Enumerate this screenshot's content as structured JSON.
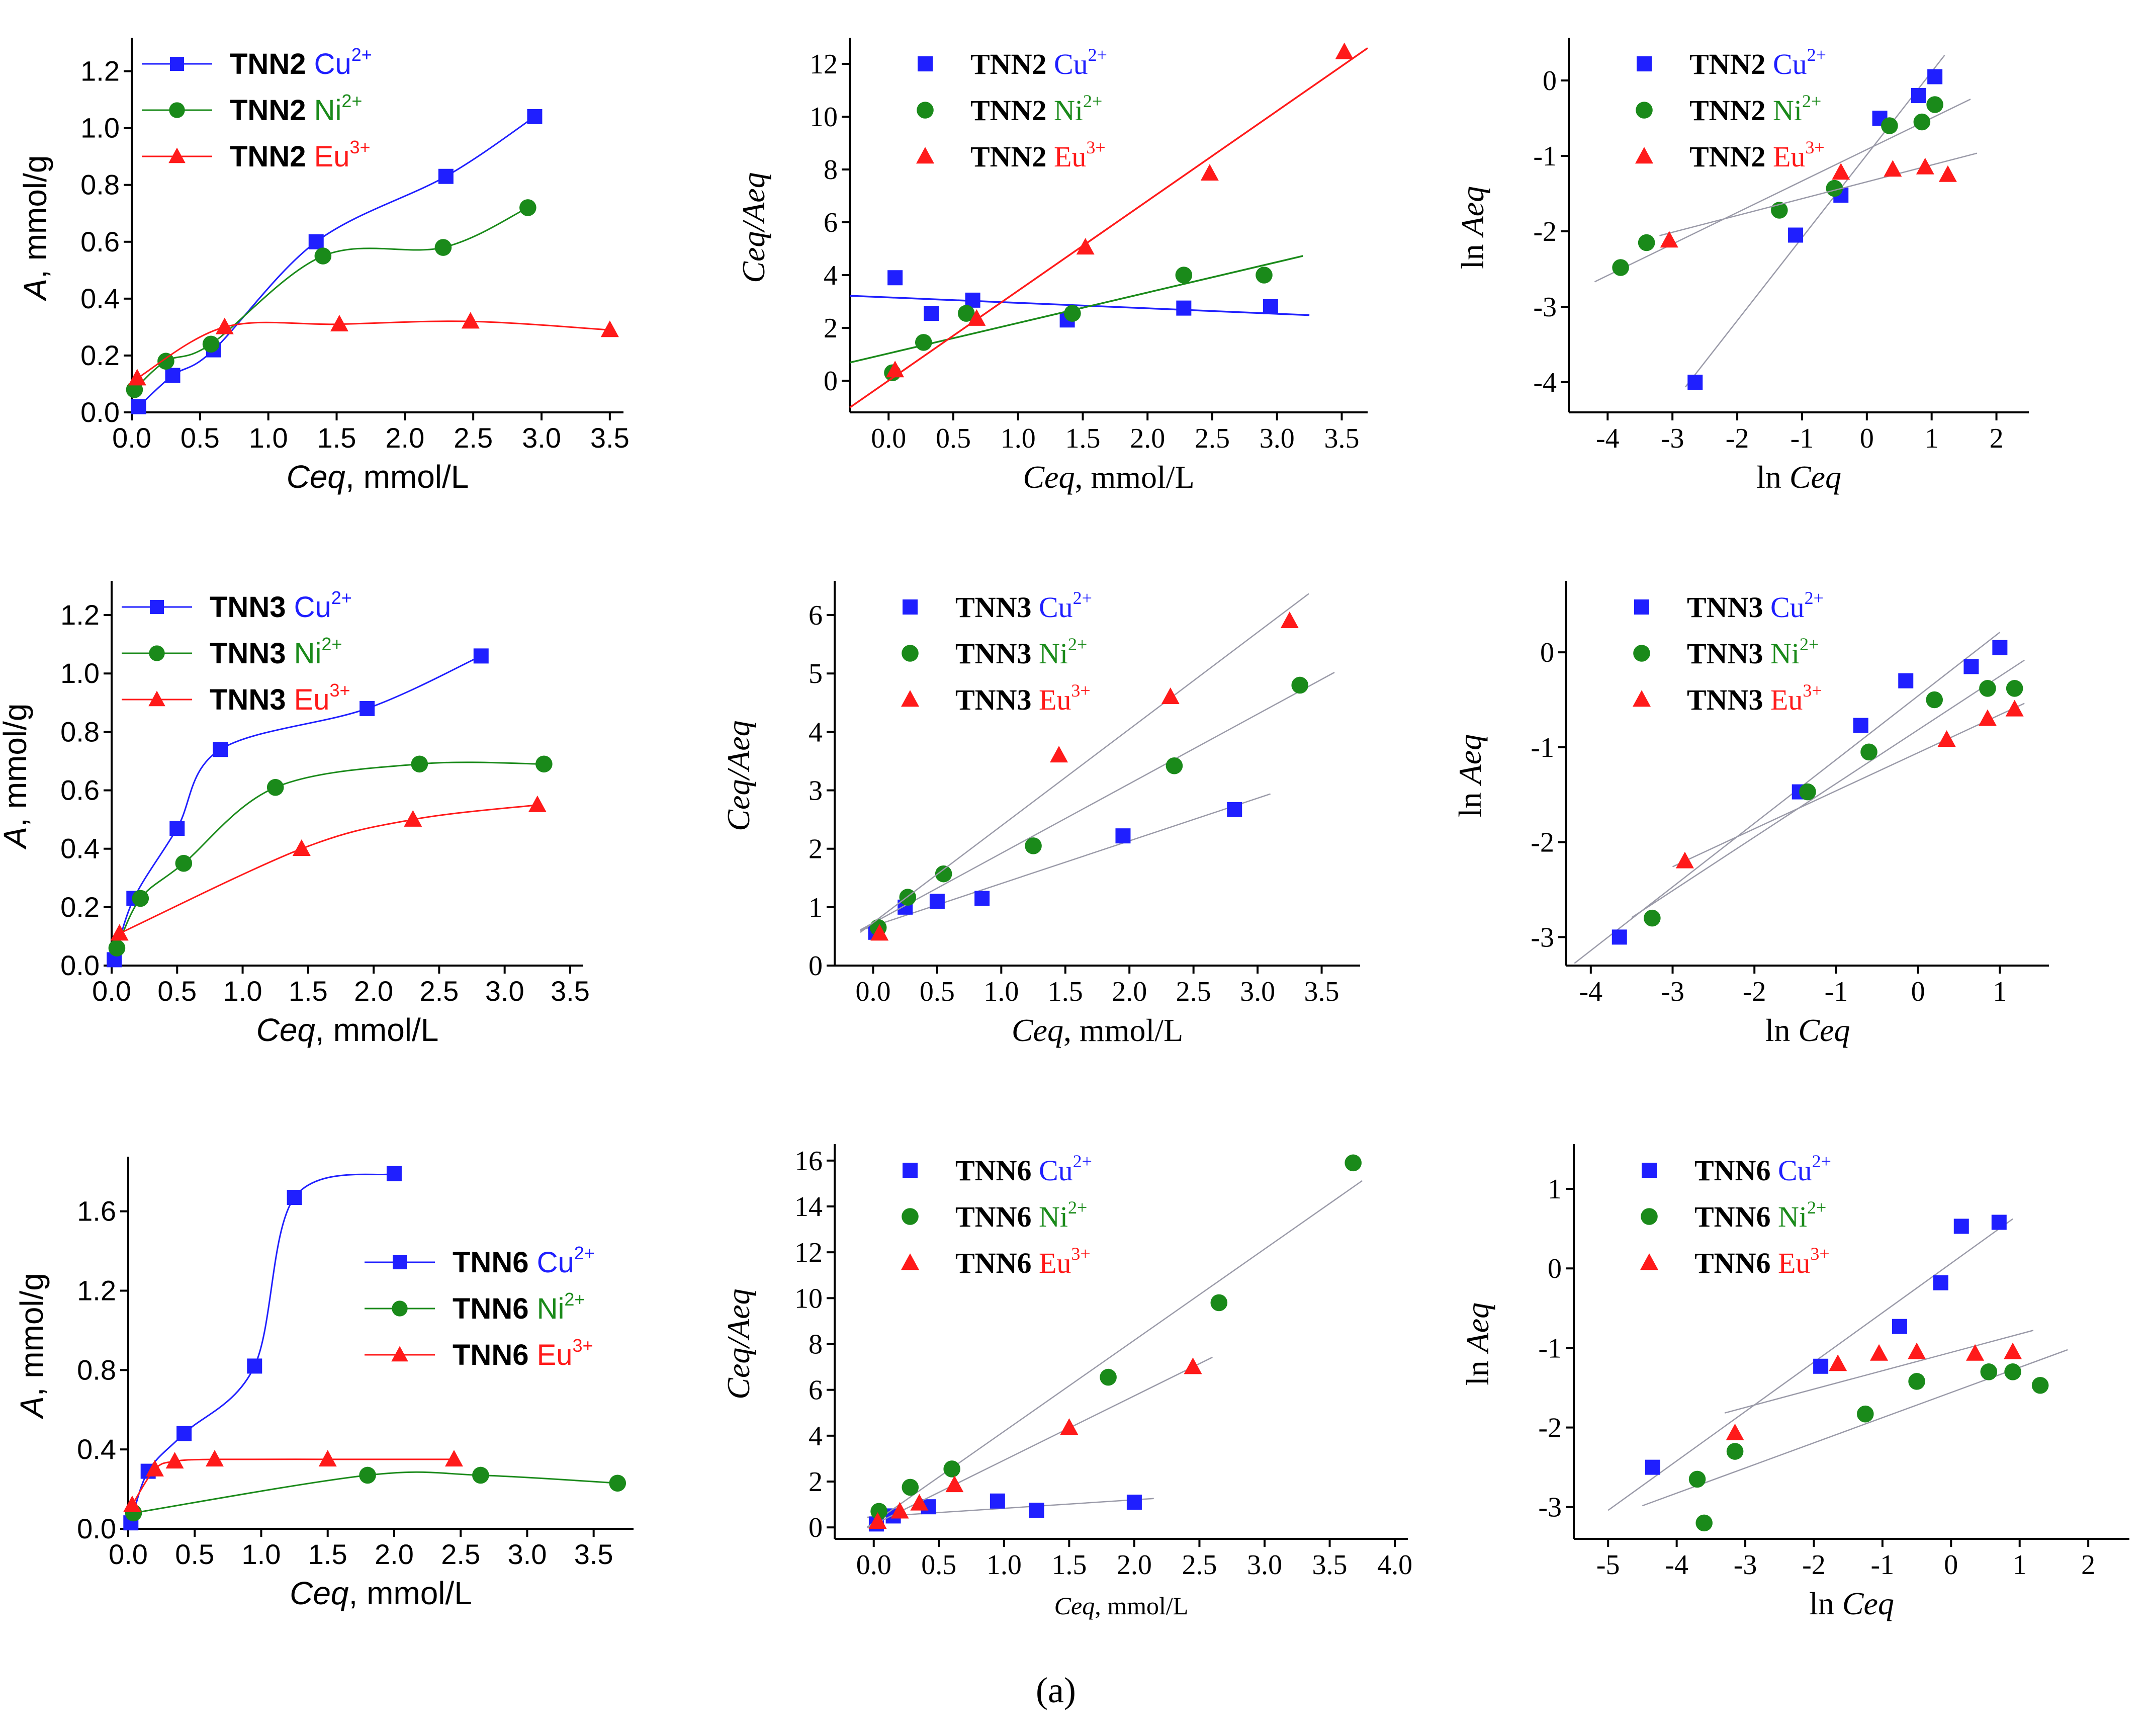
{
  "caption": "(a)",
  "colors": {
    "cu": "#1f1fff",
    "ni": "#1a8a1a",
    "eu": "#ff1a1a",
    "fitline": "#9a9aa8"
  },
  "chart_data": [
    {
      "id": "p1",
      "type": "line",
      "font": "sans",
      "ylabel_italic": "A",
      "ylabel_rest": ", mmol/g",
      "xlabel_italic": "Ceq",
      "xlabel_rest": ", mmol/L",
      "xlim": [
        0,
        3.6
      ],
      "ylim": [
        0,
        1.3
      ],
      "xticks": [
        0.0,
        0.5,
        1.0,
        1.5,
        2.0,
        2.5,
        3.0,
        3.5
      ],
      "yticks": [
        0.0,
        0.2,
        0.4,
        0.6,
        0.8,
        1.0,
        1.2
      ],
      "dec": 1,
      "legend": {
        "pos": "top-left",
        "bold": "TNN2",
        "style": "line"
      },
      "series": [
        {
          "name": "Cu",
          "sup": "2+",
          "color": "cu",
          "marker": "square",
          "curve": "smooth",
          "x": [
            0.05,
            0.3,
            0.6,
            1.35,
            2.3,
            2.95
          ],
          "y": [
            0.02,
            0.13,
            0.22,
            0.6,
            0.83,
            1.04
          ]
        },
        {
          "name": "Ni",
          "sup": "2+",
          "color": "ni",
          "marker": "circle",
          "curve": "smooth",
          "x": [
            0.02,
            0.25,
            0.58,
            1.4,
            2.28,
            2.9
          ],
          "y": [
            0.08,
            0.18,
            0.24,
            0.55,
            0.58,
            0.72
          ]
        },
        {
          "name": "Eu",
          "sup": "3+",
          "color": "eu",
          "marker": "triangle",
          "curve": "smooth",
          "x": [
            0.04,
            0.68,
            1.52,
            2.48,
            3.5
          ],
          "y": [
            0.12,
            0.3,
            0.31,
            0.32,
            0.29
          ]
        }
      ]
    },
    {
      "id": "p2",
      "type": "scatter",
      "font": "serif",
      "ylabel_italic": "Ceq/Aeq",
      "ylabel_rest": "",
      "xlabel_italic": "Ceq",
      "xlabel_rest": ", mmol/L",
      "xlim": [
        -0.3,
        3.7
      ],
      "ylim": [
        -1.2,
        12.8
      ],
      "xticks": [
        0.0,
        0.5,
        1.0,
        1.5,
        2.0,
        2.5,
        3.0,
        3.5
      ],
      "yticks": [
        0,
        2,
        4,
        6,
        8,
        10,
        12
      ],
      "dec": 1,
      "ydec": 0,
      "legend": {
        "pos": "top-left",
        "bold": "TNN2",
        "style": "marker"
      },
      "series": [
        {
          "name": "Cu",
          "sup": "2+",
          "color": "cu",
          "marker": "square",
          "curve": "fit",
          "fit": [
            -0.3,
            3.25
          ],
          "x": [
            0.05,
            0.33,
            0.65,
            1.38,
            2.28,
            2.95
          ],
          "y": [
            3.9,
            2.55,
            3.05,
            2.3,
            2.75,
            2.8
          ]
        },
        {
          "name": "Ni",
          "sup": "2+",
          "color": "ni",
          "marker": "circle",
          "curve": "fit",
          "fit": [
            -0.3,
            3.2
          ],
          "x": [
            0.03,
            0.27,
            0.6,
            1.42,
            2.28,
            2.9
          ],
          "y": [
            0.3,
            1.45,
            2.55,
            2.55,
            4.0,
            4.0
          ]
        },
        {
          "name": "Eu",
          "sup": "3+",
          "color": "eu",
          "marker": "triangle",
          "curve": "fit",
          "fit": [
            -0.3,
            3.7
          ],
          "x": [
            0.05,
            0.68,
            1.52,
            2.48,
            3.52
          ],
          "y": [
            0.4,
            2.35,
            5.05,
            7.85,
            12.45
          ]
        }
      ]
    },
    {
      "id": "p3",
      "type": "scatter",
      "font": "serif",
      "ylabel_italic": "Aeq",
      "ylabel_pre": "ln ",
      "xlabel_italic": "Ceq",
      "xlabel_pre": "ln ",
      "xlim": [
        -4.6,
        2.5
      ],
      "ylim": [
        -4.4,
        0.5
      ],
      "xticks": [
        -4,
        -3,
        -2,
        -1,
        0,
        1,
        2
      ],
      "yticks": [
        -4,
        -3,
        -2,
        -1,
        0
      ],
      "dec": 0,
      "ydec": 0,
      "legend": {
        "pos": "top-left",
        "bold": "TNN2",
        "style": "marker"
      },
      "series": [
        {
          "name": "Cu",
          "sup": "2+",
          "color": "cu",
          "marker": "square",
          "curve": "fit",
          "fit": [
            -2.8,
            1.2
          ],
          "x": [
            -2.65,
            -1.1,
            -0.4,
            0.2,
            0.8,
            1.05
          ],
          "y": [
            -4.0,
            -2.05,
            -1.52,
            -0.5,
            -0.2,
            0.05
          ]
        },
        {
          "name": "Ni",
          "sup": "2+",
          "color": "ni",
          "marker": "circle",
          "curve": "fit",
          "fit": [
            -4.2,
            1.6
          ],
          "x": [
            -3.8,
            -3.4,
            -1.35,
            -0.5,
            0.35,
            0.85,
            1.05
          ],
          "y": [
            -2.48,
            -2.15,
            -1.72,
            -1.43,
            -0.6,
            -0.55,
            -0.32
          ]
        },
        {
          "name": "Eu",
          "sup": "3+",
          "color": "eu",
          "marker": "triangle",
          "curve": "fit",
          "fit": [
            -3.2,
            1.7
          ],
          "x": [
            -3.05,
            -0.4,
            0.4,
            0.9,
            1.25
          ],
          "y": [
            -2.12,
            -1.22,
            -1.18,
            -1.15,
            -1.25
          ]
        }
      ]
    },
    {
      "id": "p4",
      "type": "line",
      "font": "sans",
      "ylabel_italic": "A",
      "ylabel_rest": ", mmol/g",
      "xlabel_italic": "Ceq",
      "xlabel_rest": ", mmol/L",
      "xlim": [
        0,
        3.6
      ],
      "ylim": [
        0,
        1.3
      ],
      "xticks": [
        0.0,
        0.5,
        1.0,
        1.5,
        2.0,
        2.5,
        3.0,
        3.5
      ],
      "yticks": [
        0.0,
        0.2,
        0.4,
        0.6,
        0.8,
        1.0,
        1.2
      ],
      "dec": 1,
      "legend": {
        "pos": "top-left",
        "bold": "TNN3",
        "style": "line"
      },
      "series": [
        {
          "name": "Cu",
          "sup": "2+",
          "color": "cu",
          "marker": "square",
          "curve": "smooth",
          "x": [
            0.02,
            0.17,
            0.5,
            0.83,
            1.95,
            2.82
          ],
          "y": [
            0.02,
            0.23,
            0.47,
            0.74,
            0.88,
            1.06
          ]
        },
        {
          "name": "Ni",
          "sup": "2+",
          "color": "ni",
          "marker": "circle",
          "curve": "smooth",
          "x": [
            0.04,
            0.22,
            0.55,
            1.25,
            2.35,
            3.3
          ],
          "y": [
            0.06,
            0.23,
            0.35,
            0.61,
            0.69,
            0.69
          ]
        },
        {
          "name": "Eu",
          "sup": "3+",
          "color": "eu",
          "marker": "triangle",
          "curve": "smooth",
          "x": [
            0.06,
            1.45,
            2.3,
            3.25
          ],
          "y": [
            0.11,
            0.4,
            0.5,
            0.55
          ]
        }
      ]
    },
    {
      "id": "p5",
      "type": "scatter",
      "font": "serif",
      "ylabel_italic": "Ceq/Aeq",
      "ylabel_rest": "",
      "xlabel_italic": "Ceq",
      "xlabel_rest": ", mmol/L",
      "xlim": [
        -0.3,
        3.8
      ],
      "ylim": [
        0,
        6.5
      ],
      "xticks": [
        0.0,
        0.5,
        1.0,
        1.5,
        2.0,
        2.5,
        3.0,
        3.5
      ],
      "yticks": [
        0,
        1,
        2,
        3,
        4,
        5,
        6
      ],
      "dec": 1,
      "ydec": 0,
      "legend": {
        "pos": "top-left",
        "bold": "TNN3",
        "style": "marker"
      },
      "series": [
        {
          "name": "Cu",
          "sup": "2+",
          "color": "cu",
          "marker": "square",
          "curve": "fit",
          "fit": [
            -0.1,
            3.1
          ],
          "x": [
            0.02,
            0.25,
            0.5,
            0.85,
            1.95,
            2.82
          ],
          "y": [
            0.57,
            1.0,
            1.1,
            1.15,
            2.22,
            2.67
          ]
        },
        {
          "name": "Ni",
          "sup": "2+",
          "color": "ni",
          "marker": "circle",
          "curve": "fit",
          "fit": [
            -0.1,
            3.6
          ],
          "x": [
            0.04,
            0.27,
            0.55,
            1.25,
            2.35,
            3.33
          ],
          "y": [
            0.65,
            1.17,
            1.57,
            2.05,
            3.42,
            4.8
          ]
        },
        {
          "name": "Eu",
          "sup": "3+",
          "color": "eu",
          "marker": "triangle",
          "curve": "fit",
          "fit": [
            -0.1,
            3.4
          ],
          "x": [
            0.05,
            1.45,
            2.32,
            3.25
          ],
          "y": [
            0.55,
            3.6,
            4.6,
            5.9
          ]
        }
      ]
    },
    {
      "id": "p6",
      "type": "scatter",
      "font": "serif",
      "ylabel_italic": "Aeq",
      "ylabel_pre": "ln ",
      "xlabel_italic": "Ceq",
      "xlabel_pre": "ln ",
      "xlim": [
        -4.3,
        1.6
      ],
      "ylim": [
        -3.3,
        0.7
      ],
      "xticks": [
        -4,
        -3,
        -2,
        -1,
        0,
        1
      ],
      "yticks": [
        -3,
        -2,
        -1,
        0
      ],
      "dec": 0,
      "ydec": 0,
      "legend": {
        "pos": "top-left",
        "bold": "TNN3",
        "style": "marker"
      },
      "series": [
        {
          "name": "Cu",
          "sup": "2+",
          "color": "cu",
          "marker": "square",
          "curve": "fit",
          "fit": [
            -4.2,
            1.0
          ],
          "x": [
            -3.65,
            -1.45,
            -0.7,
            -0.15,
            0.65,
            1.0
          ],
          "y": [
            -3.0,
            -1.47,
            -0.77,
            -0.3,
            -0.15,
            0.05
          ]
        },
        {
          "name": "Ni",
          "sup": "2+",
          "color": "ni",
          "marker": "circle",
          "curve": "fit",
          "fit": [
            -3.5,
            1.3
          ],
          "x": [
            -3.25,
            -1.35,
            -0.6,
            0.2,
            0.85,
            1.18
          ],
          "y": [
            -2.8,
            -1.47,
            -1.05,
            -0.5,
            -0.38,
            -0.38
          ]
        },
        {
          "name": "Eu",
          "sup": "3+",
          "color": "eu",
          "marker": "triangle",
          "curve": "fit",
          "fit": [
            -3.0,
            1.3
          ],
          "x": [
            -2.85,
            0.35,
            0.85,
            1.18
          ],
          "y": [
            -2.2,
            -0.92,
            -0.7,
            -0.6
          ]
        }
      ]
    },
    {
      "id": "p7",
      "type": "line",
      "font": "sans",
      "ylabel_italic": "A",
      "ylabel_rest": ", mmol/g",
      "xlabel_italic": "Ceq",
      "xlabel_rest": ", mmol/L",
      "xlim": [
        0,
        3.8
      ],
      "ylim": [
        0,
        1.85
      ],
      "xticks": [
        0.0,
        0.5,
        1.0,
        1.5,
        2.0,
        2.5,
        3.0,
        3.5
      ],
      "yticks": [
        0.0,
        0.4,
        0.8,
        1.2,
        1.6
      ],
      "dec": 1,
      "legend": {
        "pos": "middle-right",
        "bold": "TNN6",
        "style": "line"
      },
      "series": [
        {
          "name": "Cu",
          "sup": "2+",
          "color": "cu",
          "marker": "square",
          "curve": "smooth",
          "x": [
            0.02,
            0.15,
            0.42,
            0.95,
            1.25,
            2.0
          ],
          "y": [
            0.03,
            0.29,
            0.48,
            0.82,
            1.67,
            1.79
          ]
        },
        {
          "name": "Ni",
          "sup": "2+",
          "color": "ni",
          "marker": "circle",
          "curve": "smooth",
          "x": [
            0.04,
            1.8,
            2.65,
            3.68
          ],
          "y": [
            0.08,
            0.27,
            0.27,
            0.23
          ]
        },
        {
          "name": "Eu",
          "sup": "3+",
          "color": "eu",
          "marker": "triangle",
          "curve": "smooth",
          "x": [
            0.03,
            0.2,
            0.35,
            0.65,
            1.5,
            2.45
          ],
          "y": [
            0.12,
            0.3,
            0.34,
            0.35,
            0.35,
            0.35
          ]
        }
      ]
    },
    {
      "id": "p8",
      "type": "scatter",
      "font": "serif",
      "ylabel_italic": "Ceq/Aeq",
      "ylabel_rest": "",
      "xlabel_italic": "Ceq",
      "xlabel_rest": ", mmol/L",
      "xlabel_small": true,
      "xlim": [
        -0.3,
        4.1
      ],
      "ylim": [
        -0.5,
        16.5
      ],
      "xticks": [
        0.0,
        0.5,
        1.0,
        1.5,
        2.0,
        2.5,
        3.0,
        3.5,
        4.0
      ],
      "yticks": [
        0,
        2,
        4,
        6,
        8,
        10,
        12,
        14,
        16
      ],
      "dec": 1,
      "ydec": 0,
      "legend": {
        "pos": "top-left",
        "bold": "TNN6",
        "style": "marker"
      },
      "series": [
        {
          "name": "Cu",
          "sup": "2+",
          "color": "cu",
          "marker": "square",
          "curve": "fit",
          "fit": [
            -0.05,
            2.15
          ],
          "x": [
            0.02,
            0.15,
            0.42,
            0.95,
            1.25,
            2.0
          ],
          "y": [
            0.15,
            0.5,
            0.9,
            1.15,
            0.75,
            1.1
          ]
        },
        {
          "name": "Ni",
          "sup": "2+",
          "color": "ni",
          "marker": "circle",
          "curve": "fit",
          "fit": [
            -0.05,
            3.75
          ],
          "x": [
            0.04,
            0.28,
            0.6,
            1.8,
            2.65,
            3.68
          ],
          "y": [
            0.7,
            1.75,
            2.55,
            6.55,
            9.8,
            15.9
          ]
        },
        {
          "name": "Eu",
          "sup": "3+",
          "color": "eu",
          "marker": "triangle",
          "curve": "fit",
          "fit": [
            -0.05,
            2.6
          ],
          "x": [
            0.03,
            0.2,
            0.35,
            0.62,
            1.5,
            2.45
          ],
          "y": [
            0.25,
            0.7,
            1.05,
            1.85,
            4.35,
            7.0
          ]
        }
      ]
    },
    {
      "id": "p9",
      "type": "scatter",
      "font": "serif",
      "ylabel_italic": "Aeq",
      "ylabel_pre": "ln ",
      "xlabel_italic": "Ceq",
      "xlabel_pre": "ln ",
      "xlim": [
        -5.5,
        2.6
      ],
      "ylim": [
        -3.4,
        1.5
      ],
      "xticks": [
        -5,
        -4,
        -3,
        -2,
        -1,
        0,
        1,
        2
      ],
      "yticks": [
        -3,
        -2,
        -1,
        0,
        1
      ],
      "dec": 0,
      "ydec": 0,
      "legend": {
        "pos": "top-left",
        "bold": "TNN6",
        "style": "marker"
      },
      "series": [
        {
          "name": "Cu",
          "sup": "2+",
          "color": "cu",
          "marker": "square",
          "curve": "fit",
          "fit": [
            -5.0,
            0.9
          ],
          "x": [
            -4.35,
            -1.9,
            -0.75,
            -0.15,
            0.15,
            0.7
          ],
          "y": [
            -2.5,
            -1.23,
            -0.73,
            -0.18,
            0.53,
            0.58
          ]
        },
        {
          "name": "Ni",
          "sup": "2+",
          "color": "ni",
          "marker": "circle",
          "curve": "fit",
          "fit": [
            -4.5,
            1.7
          ],
          "x": [
            -3.7,
            -3.6,
            -3.15,
            -1.25,
            -0.5,
            0.55,
            0.9,
            1.3
          ],
          "y": [
            -2.65,
            -3.2,
            -2.3,
            -1.83,
            -1.42,
            -1.3,
            -1.3,
            -1.47
          ]
        },
        {
          "name": "Eu",
          "sup": "3+",
          "color": "eu",
          "marker": "triangle",
          "curve": "fit",
          "fit": [
            -3.3,
            1.2
          ],
          "x": [
            -3.15,
            -1.65,
            -1.05,
            -0.5,
            0.35,
            0.9
          ],
          "y": [
            -2.07,
            -1.2,
            -1.07,
            -1.05,
            -1.07,
            -1.05
          ]
        }
      ]
    }
  ]
}
